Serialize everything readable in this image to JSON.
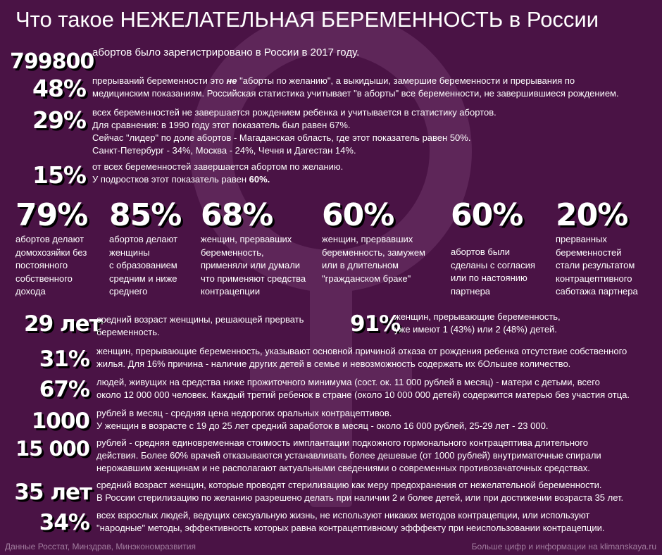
{
  "title": "Что такое НЕЖЕЛАТЕЛЬНАЯ БЕРЕМЕННОСТЬ в России",
  "background_color": "#4a1345",
  "stats_top": [
    {
      "value": "799800",
      "lines": [
        "абортов было зарегистрировано в России в 2017 году."
      ]
    },
    {
      "value": "48%",
      "line1_before": "прерываний беременности это ",
      "line1_em": "не",
      "line1_after": " \"аборты по желанию\", а выкидыши, замершие беременности и прерывания по",
      "lines": [
        "медицинским показаниям. Российская статистика учитывает \"в аборты\" все беременности, не завершившиеся рождением."
      ]
    },
    {
      "value": "29%",
      "lines": [
        "всех беременностей не завершается рождением ребенка и учитывается в статистику абортов.",
        "Для сравнения: в 1990 году этот показатель был равен 67%.",
        "Сейчас \"лидер\" по доле абортов - Магаданская область, где этот показатель равен 50%.",
        "Санкт-Петербург - 34%, Москва - 24%, Чечня и Дагестан 14%."
      ]
    },
    {
      "value": "15%",
      "lines": [
        "от всех беременностей завершается абортом по желанию."
      ],
      "line2_before": "У подростков этот показатель равен ",
      "line2_bold": "60%."
    }
  ],
  "stats_row": [
    {
      "value": "79%",
      "lines": [
        "абортов делают",
        "домохозяйки без",
        "постоянного",
        "собственного",
        "дохода"
      ]
    },
    {
      "value": "85%",
      "lines": [
        "абортов делают",
        "женщины",
        "с образованием",
        "средним и ниже",
        "среднего"
      ]
    },
    {
      "value": "68%",
      "lines": [
        "женщин, прервавших",
        "беременность,",
        "применяли или думали",
        "что применяют средства",
        "контрацепции"
      ]
    },
    {
      "value": "60%",
      "lines": [
        "женщин, прервавших",
        "беременность, замужем",
        "или в длительном",
        "\"гражданском браке\""
      ]
    },
    {
      "value": "60%",
      "lines": [
        "абортов были",
        "сделаны с согласия",
        "или по настоянию",
        "партнера"
      ]
    },
    {
      "value": "20%",
      "lines": [
        "прерванных",
        "беременностей",
        "стали результатом",
        "контрацептивного",
        "саботажа партнера"
      ]
    }
  ],
  "stats_bottom": [
    {
      "value": "29 лет",
      "lines": [
        "средний возраст женщины, решающей прервать",
        "беременность."
      ]
    },
    {
      "value": "91%",
      "lines": [
        "женщин, прерывающие беременность,",
        "уже имеют 1 (43%) или 2 (48%) детей."
      ]
    },
    {
      "value": "31%",
      "lines": [
        "женщин, прерывающие беременность, указывают основной причиной отказа от рождения ребенка отсутствие собственного",
        "жилья. Для 16% причина - наличие других детей в семье и невозможность содержать их бОльшее количество."
      ]
    },
    {
      "value": "67%",
      "lines": [
        "людей, живущих на средства ниже прожиточного минимума (сост. ок. 11 000 рублей в месяц) - матери с детьми, всего",
        "около 12 000 000 человек. Каждый третий ребенок в стране (около 10 000 000 детей) содержится матерью без участия отца."
      ]
    },
    {
      "value": "1000",
      "lines": [
        "рублей в месяц - средняя цена недорогих оральных контрацептивов.",
        "У женщин в возрасте с 19 до 25 лет средний заработок в месяц - около 16 000 рублей, 25-29 лет - 23 000."
      ]
    },
    {
      "value": "15 000",
      "lines": [
        "рублей - средняя единовременная стоимость имплантации подкожного гормонального контрацептива длительного",
        "действия. Более 60% врачей отказываются устанавливать более дешевые (от 1000 рублей) внутриматочные спирали",
        "нерожавшим женщинам и не располагают актуальными сведениями о современных противозачаточных средствах."
      ]
    },
    {
      "value": "35 лет",
      "lines": [
        "средний возраст женщин, которые проводят стерилизацию как меру предохранения от нежелательной беременности.",
        "В России стерилизацию по желанию разрешено делать при наличии 2 и более детей, или при достижении возраста 35 лет."
      ]
    },
    {
      "value": "34%",
      "lines": [
        "всех взрослых людей, ведущих сексуальную жизнь, не используют никаких методов контрацепции, или используют",
        "\"народные\" методы, эффективность которых равна контрацептивному эфффекту при неиспользовании контрацепции."
      ]
    }
  ],
  "footer": {
    "left": "Данные Росстат, Минздрав, Минэкономразвития",
    "right": "Больше цифр и информации на klimanskaya.ru"
  }
}
